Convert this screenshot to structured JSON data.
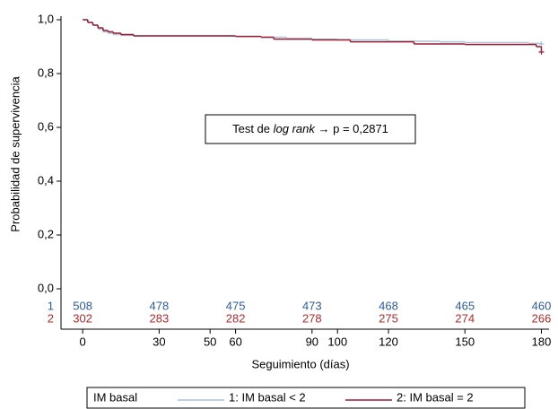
{
  "chart_data": {
    "type": "step",
    "ylabel": "Probabilidad de supervivencia",
    "xlabel": "Seguimiento (días)",
    "annotation": {
      "prefix": "Test de ",
      "italic": "log rank",
      "suffix": " → p = 0,2871"
    },
    "xlim": [
      -8.5,
      183
    ],
    "xticks": [
      0,
      30,
      50,
      60,
      90,
      100,
      120,
      150,
      180
    ],
    "ylim": [
      0,
      1
    ],
    "yticks": [
      {
        "value": 0,
        "label": "0,0"
      },
      {
        "value": 0.2,
        "label": "0,2"
      },
      {
        "value": 0.4,
        "label": "0,4"
      },
      {
        "value": 0.6,
        "label": "0,6"
      },
      {
        "value": 0.8,
        "label": "0,8"
      },
      {
        "value": 1,
        "label": "1,0"
      }
    ],
    "legend_title": "IM basal",
    "series": [
      {
        "name": "1: IM basal < 2",
        "color": "#a9c6dd",
        "x": [
          0,
          2,
          4,
          6,
          8,
          10,
          12,
          15,
          20,
          30,
          60,
          70,
          80,
          90,
          100,
          120,
          140,
          150,
          175,
          180
        ],
        "values": [
          1.0,
          0.99,
          0.98,
          0.965,
          0.955,
          0.95,
          0.945,
          0.942,
          0.94,
          0.94,
          0.938,
          0.935,
          0.93,
          0.928,
          0.925,
          0.92,
          0.918,
          0.915,
          0.912,
          0.91
        ]
      },
      {
        "name": "2: IM basal = 2",
        "color": "#9b1b30",
        "x": [
          0,
          2,
          4,
          6,
          8,
          10,
          12,
          15,
          20,
          60,
          70,
          75,
          90,
          105,
          130,
          150,
          178,
          180
        ],
        "values": [
          1.0,
          0.99,
          0.98,
          0.97,
          0.96,
          0.955,
          0.95,
          0.945,
          0.94,
          0.938,
          0.935,
          0.928,
          0.925,
          0.918,
          0.91,
          0.908,
          0.9,
          0.88
        ]
      }
    ],
    "risk_table": {
      "times": [
        0,
        30,
        60,
        90,
        120,
        150,
        180
      ],
      "rows": [
        {
          "label": "1",
          "color": "#2e5c9a",
          "values": [
            508,
            478,
            475,
            473,
            468,
            465,
            460
          ]
        },
        {
          "label": "2",
          "color": "#b02a2a",
          "values": [
            302,
            283,
            282,
            278,
            275,
            274,
            266
          ]
        }
      ]
    }
  }
}
